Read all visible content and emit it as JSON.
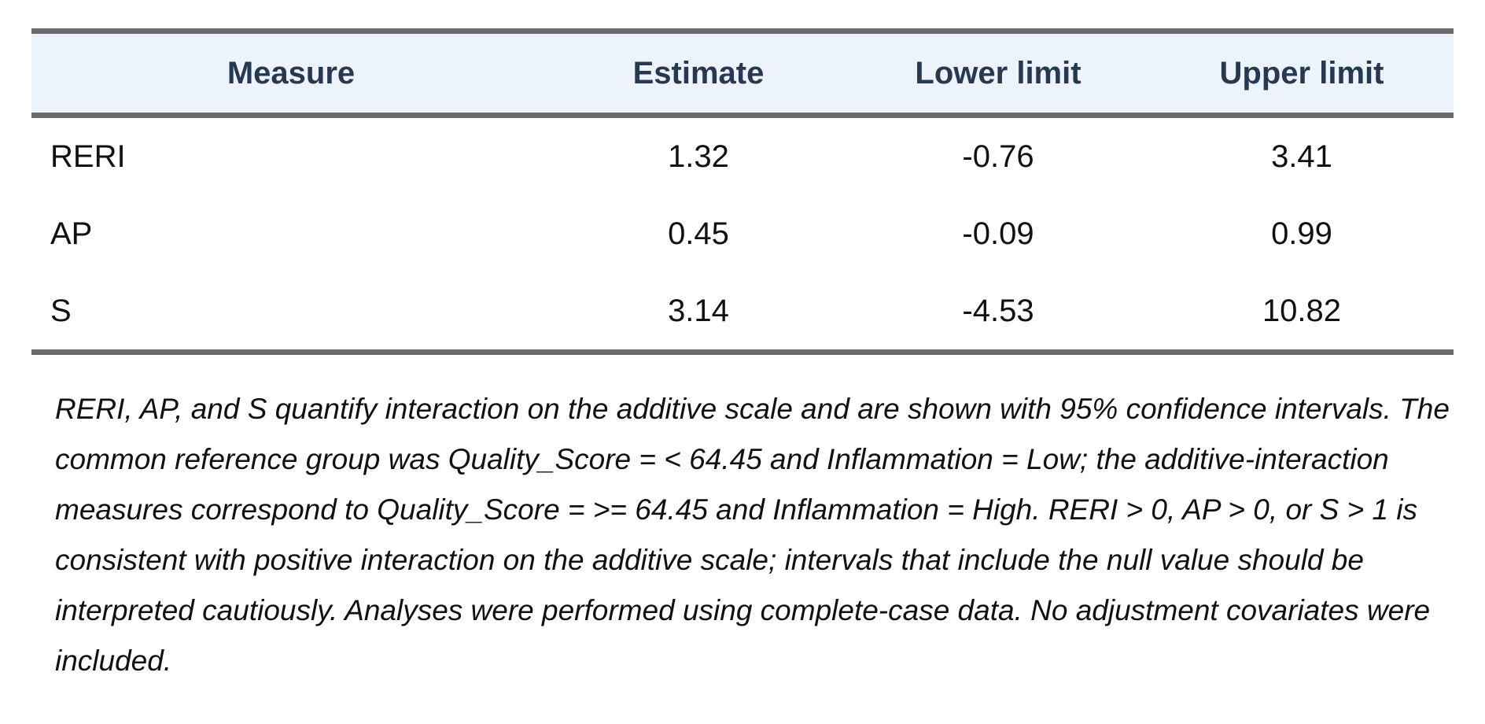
{
  "table": {
    "headers": {
      "measure": "Measure",
      "estimate": "Estimate",
      "lower": "Lower limit",
      "upper": "Upper limit"
    },
    "rows": [
      {
        "measure": "RERI",
        "estimate": "1.32",
        "lower": "-0.76",
        "upper": "3.41"
      },
      {
        "measure": "AP",
        "estimate": "0.45",
        "lower": "-0.09",
        "upper": "0.99"
      },
      {
        "measure": "S",
        "estimate": "3.14",
        "lower": "-4.53",
        "upper": "10.82"
      }
    ]
  },
  "footnote": "RERI, AP, and S quantify interaction on the additive scale and are shown with 95% confidence intervals. The common reference group was Quality_Score = < 64.45 and Inflammation = Low; the additive-interaction measures correspond to Quality_Score = >= 64.45 and Inflammation = High. RERI > 0, AP > 0, or S > 1 is consistent with positive interaction on the additive scale; intervals that include the null value should be interpreted cautiously. Analyses were performed using complete-case data. No adjustment covariates were included.",
  "colors": {
    "header_background": "#ecf3fb",
    "header_text": "#253a52",
    "rule": "#6b6b6b"
  }
}
